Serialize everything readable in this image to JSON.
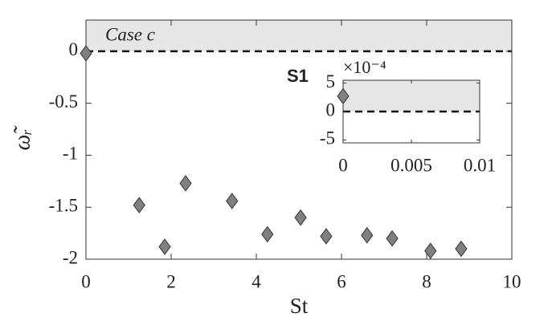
{
  "chart_data": [
    {
      "type": "scatter",
      "xlabel": "St",
      "ylabel": "ω̃ᵣ",
      "annotation": "Case c",
      "x": [
        0,
        1.25,
        1.85,
        2.34,
        3.43,
        4.26,
        5.04,
        5.64,
        6.6,
        7.19,
        8.09,
        8.81
      ],
      "values": [
        -0.02,
        -1.48,
        -1.88,
        -1.27,
        -1.44,
        -1.76,
        -1.6,
        -1.78,
        -1.77,
        -1.8,
        -1.92,
        -1.9
      ],
      "color": "#808080",
      "edge_color": "#333333",
      "xlim": [
        0,
        10
      ],
      "xticks": [
        0,
        2,
        4,
        6,
        8,
        10
      ],
      "ylim": [
        -2,
        0.3
      ],
      "yticks": [
        -2,
        -1.5,
        -1,
        -0.5,
        0
      ],
      "reference_line": 0,
      "shade_color": "#e6e6e6"
    },
    {
      "type": "scatter",
      "title": "S1",
      "y_multiplier": "×10⁻⁴",
      "x": [
        0
      ],
      "values": [
        0.00027
      ],
      "color": "#808080",
      "edge_color": "#333333",
      "xlim": [
        0,
        0.01
      ],
      "xticks": [
        0,
        0.005,
        0.01
      ],
      "ylim": [
        -0.00055,
        0.00055
      ],
      "yticks": [
        {
          "value": -0.0005,
          "label": "-5"
        },
        {
          "value": 0,
          "label": "0"
        },
        {
          "value": 0.0005,
          "label": "5"
        }
      ],
      "reference_line": 0,
      "shade_color": "#e6e6e6"
    }
  ]
}
